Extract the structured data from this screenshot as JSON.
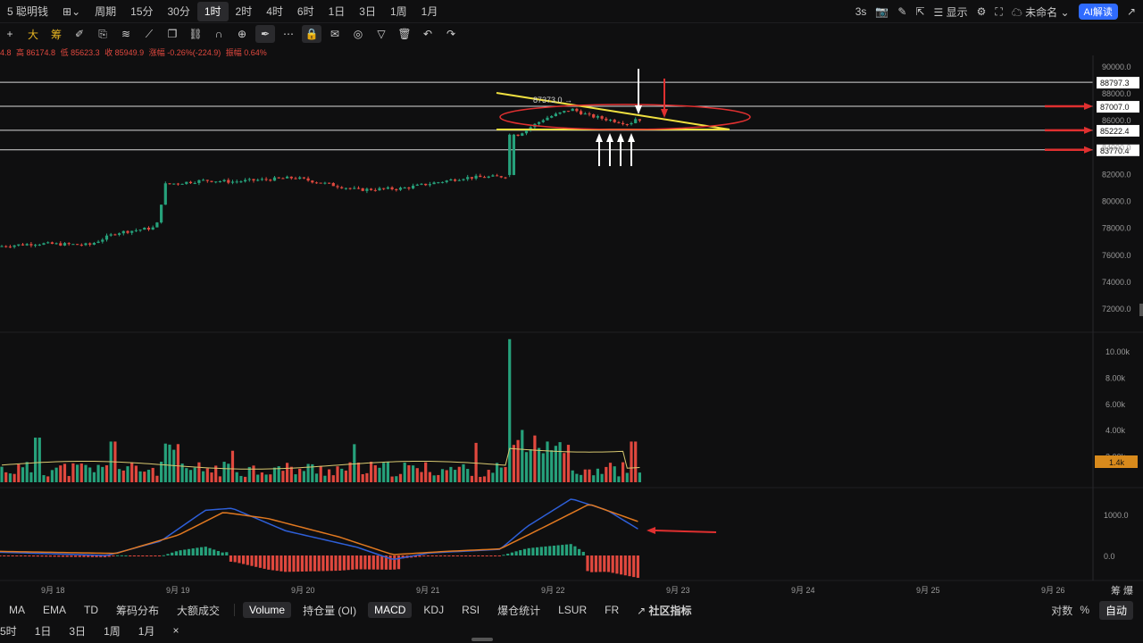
{
  "topbar": {
    "left_items": [
      {
        "label": "5 聪明钱",
        "name": "symbol-name"
      },
      {
        "label": "⊞⌄",
        "name": "layout-menu"
      },
      {
        "label": "周期",
        "name": "period-menu"
      }
    ],
    "intervals": [
      "15分",
      "30分",
      "1时",
      "2时",
      "4时",
      "6时",
      "1日",
      "3日",
      "1周",
      "1月"
    ],
    "active_interval": "1时",
    "right": {
      "speed": "3s",
      "display_label": "显示",
      "layout_name": "未命名",
      "ai_label": "AI解读"
    }
  },
  "toolbar": {
    "icons": [
      "cursor-icon",
      "big-icon",
      "chip-icon",
      "brush-icon",
      "copy-icon",
      "layers-icon",
      "ruler-icon",
      "clone-icon",
      "link-icon",
      "magnet-icon",
      "zoom-icon",
      "pen-icon",
      "dots-icon",
      "lock-icon",
      "note-icon",
      "eye-icon",
      "filter-icon",
      "trash-icon",
      "undo-icon",
      "redo-icon"
    ],
    "labels": {
      "big": "大",
      "chip": "筹"
    }
  },
  "infoline": {
    "open": "4.8",
    "high": "高 86174.8",
    "low": "低 85623.3",
    "close": "收 85949.9",
    "change": "涨幅 -0.26%(-224.9)",
    "amplitude": "振幅 0.64%"
  },
  "price_axis": {
    "ticks": [
      "90000.0",
      "88000.0",
      "86000.0",
      "84000.0",
      "82000.0",
      "80000.0",
      "78000.0",
      "76000.0",
      "74000.0",
      "72000.0"
    ],
    "tick_values": [
      90000,
      88000,
      86000,
      84000,
      82000,
      80000,
      78000,
      76000,
      74000,
      72000
    ],
    "levels": [
      {
        "label": "88797.3",
        "value": 88797.3
      },
      {
        "label": "87007.0",
        "value": 87007.0
      },
      {
        "label": "85222.4",
        "value": 85222.4
      },
      {
        "label": "83770.4",
        "value": 83770.4
      }
    ],
    "high_marker": "87373.0"
  },
  "volume_axis": {
    "ticks": [
      "10.00k",
      "8.00k",
      "6.00k",
      "4.00k",
      "2.00k"
    ],
    "tick_values": [
      10000,
      8000,
      6000,
      4000,
      2000
    ],
    "current": "1.4k"
  },
  "macd_axis": {
    "ticks": [
      "1000.0",
      "0.0"
    ],
    "tick_values": [
      1000,
      0
    ]
  },
  "date_axis": {
    "labels": [
      "9月 18",
      "9月 19",
      "9月 20",
      "9月 21",
      "9月 22",
      "9月 23",
      "9月 24",
      "9月 25",
      "9月 26"
    ],
    "corner": "筹 爆"
  },
  "chart_data": {
    "type": "candlestick",
    "price_range": [
      71000,
      91000
    ],
    "volume_range": [
      0,
      11000
    ],
    "macd_range": [
      -250,
      1400
    ],
    "annotations": {
      "horizontal_levels": [
        88797.3,
        87007.0,
        85222.4,
        83770.4
      ],
      "high_marker": 87373.0
    }
  },
  "bottom": {
    "indicators": [
      "MA",
      "EMA",
      "TD",
      "筹码分布",
      "大额成交"
    ],
    "sub_indicators": [
      "Volume",
      "持仓量 (OI)",
      "MACD",
      "KDJ",
      "RSI",
      "爆仓统计",
      "LSUR",
      "FR"
    ],
    "active": [
      "Volume",
      "MACD"
    ],
    "community": "社区指标",
    "right": [
      "对数",
      "%",
      "自动"
    ]
  },
  "interval_bar": {
    "items": [
      "5时",
      "1日",
      "3日",
      "1周",
      "1月",
      "×"
    ]
  },
  "colors": {
    "up": "#26a17b",
    "down": "#e0483e",
    "level_line": "#d8d8d8",
    "trend_line": "#f0e040",
    "annotation_red": "#e03030",
    "macd_dif": "#2e5fd8",
    "macd_dea": "#e07820",
    "vol_ma": "#d8c870"
  }
}
